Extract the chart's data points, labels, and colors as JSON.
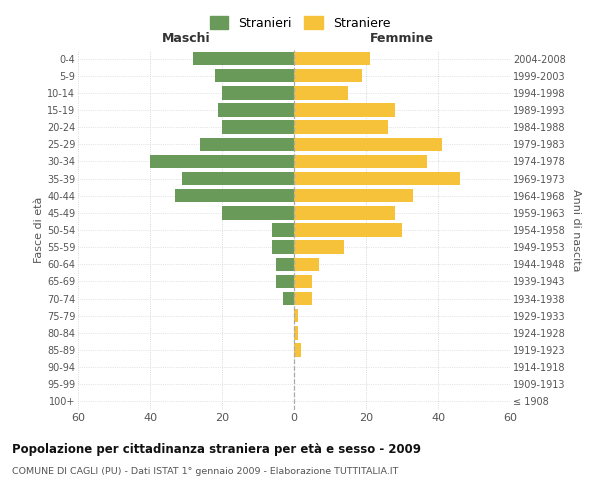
{
  "age_groups": [
    "100+",
    "95-99",
    "90-94",
    "85-89",
    "80-84",
    "75-79",
    "70-74",
    "65-69",
    "60-64",
    "55-59",
    "50-54",
    "45-49",
    "40-44",
    "35-39",
    "30-34",
    "25-29",
    "20-24",
    "15-19",
    "10-14",
    "5-9",
    "0-4"
  ],
  "birth_years": [
    "≤ 1908",
    "1909-1913",
    "1914-1918",
    "1919-1923",
    "1924-1928",
    "1929-1933",
    "1934-1938",
    "1939-1943",
    "1944-1948",
    "1949-1953",
    "1954-1958",
    "1959-1963",
    "1964-1968",
    "1969-1973",
    "1974-1978",
    "1979-1983",
    "1984-1988",
    "1989-1993",
    "1994-1998",
    "1999-2003",
    "2004-2008"
  ],
  "males": [
    0,
    0,
    0,
    0,
    0,
    0,
    3,
    5,
    5,
    6,
    6,
    20,
    33,
    31,
    40,
    26,
    20,
    21,
    20,
    22,
    28
  ],
  "females": [
    0,
    0,
    0,
    2,
    1,
    1,
    5,
    5,
    7,
    14,
    30,
    28,
    33,
    46,
    37,
    41,
    26,
    28,
    15,
    19,
    21
  ],
  "male_color": "#6a9a5a",
  "female_color": "#f5c239",
  "background_color": "#ffffff",
  "grid_color": "#cccccc",
  "title": "Popolazione per cittadinanza straniera per età e sesso - 2009",
  "subtitle": "COMUNE DI CAGLI (PU) - Dati ISTAT 1° gennaio 2009 - Elaborazione TUTTITALIA.IT",
  "xlabel_left": "Maschi",
  "xlabel_right": "Femmine",
  "ylabel_left": "Fasce di età",
  "ylabel_right": "Anni di nascita",
  "xlim": 60,
  "legend_stranieri": "Stranieri",
  "legend_straniere": "Straniere"
}
